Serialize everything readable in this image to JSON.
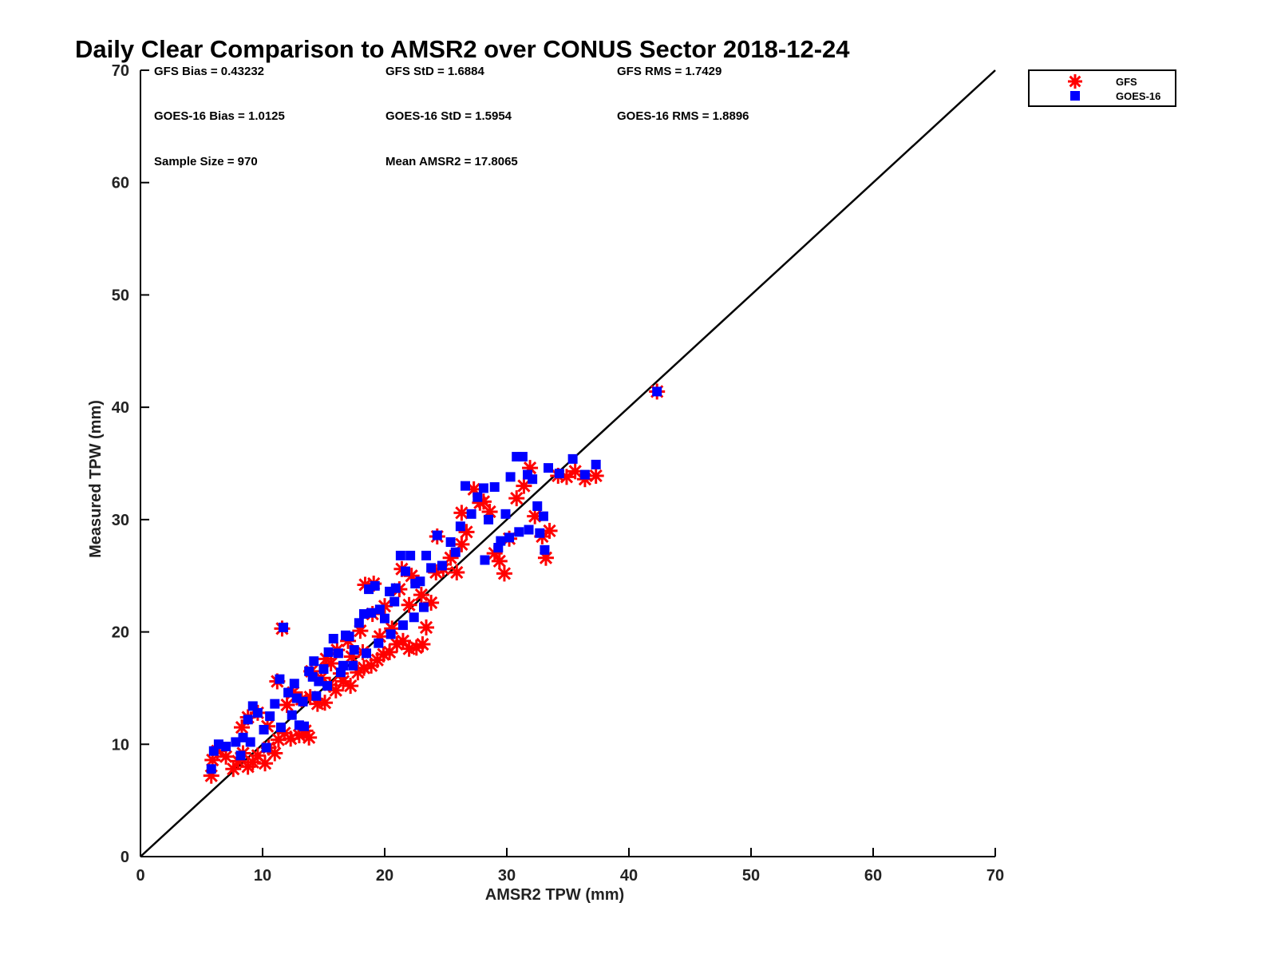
{
  "colors": {
    "gfs": "#ff0000",
    "goes": "#0000ff",
    "axis": "#000000"
  },
  "stats": {
    "gfs_bias": "GFS Bias = 0.43232",
    "gfs_std": "GFS StD = 1.6884",
    "gfs_rms": "GFS RMS = 1.7429",
    "goes_bias": "GOES-16 Bias = 1.0125",
    "goes_std": "GOES-16 StD = 1.5954",
    "goes_rms": "GOES-16 RMS = 1.8896",
    "sample_size": "Sample Size = 970",
    "mean_amsr2": "Mean AMSR2 = 17.8065"
  },
  "legend": {
    "gfs": "GFS",
    "goes": "GOES-16"
  },
  "chart_data": {
    "type": "scatter",
    "title": "Daily Clear Comparison to AMSR2 over CONUS Sector 2018-12-24",
    "xlabel": "AMSR2 TPW (mm)",
    "ylabel": "Measured TPW (mm)",
    "xlim": [
      0,
      70
    ],
    "ylim": [
      0,
      70
    ],
    "xticks": [
      "0",
      "10",
      "20",
      "30",
      "40",
      "50",
      "60",
      "70"
    ],
    "yticks": [
      "0",
      "10",
      "20",
      "30",
      "40",
      "50",
      "60",
      "70"
    ],
    "grid": false,
    "legend_position": "outside-top-right",
    "reference_line": {
      "from": [
        0,
        0
      ],
      "to": [
        70,
        70
      ]
    },
    "series": [
      {
        "name": "GFS",
        "marker": "asterisk",
        "points": [
          [
            5.8,
            7.2
          ],
          [
            5.9,
            8.6
          ],
          [
            6.3,
            9.4
          ],
          [
            7.0,
            8.9
          ],
          [
            7.6,
            7.8
          ],
          [
            8.0,
            8.5
          ],
          [
            8.4,
            9.2
          ],
          [
            8.8,
            8.0
          ],
          [
            9.2,
            8.4
          ],
          [
            9.6,
            9.0
          ],
          [
            10.2,
            8.3
          ],
          [
            10.5,
            9.7
          ],
          [
            11.0,
            9.2
          ],
          [
            11.3,
            10.4
          ],
          [
            11.8,
            11.0
          ],
          [
            12.3,
            10.5
          ],
          [
            13.0,
            10.8
          ],
          [
            13.5,
            11.2
          ],
          [
            13.8,
            10.6
          ],
          [
            8.3,
            11.5
          ],
          [
            8.8,
            12.4
          ],
          [
            9.6,
            12.8
          ],
          [
            10.4,
            11.6
          ],
          [
            11.2,
            15.6
          ],
          [
            11.6,
            20.3
          ],
          [
            12.0,
            13.5
          ],
          [
            12.5,
            14.6
          ],
          [
            13.2,
            14.0
          ],
          [
            13.9,
            14.2
          ],
          [
            14.5,
            13.6
          ],
          [
            15.1,
            13.7
          ],
          [
            15.5,
            15.3
          ],
          [
            16.0,
            14.8
          ],
          [
            16.6,
            15.6
          ],
          [
            17.2,
            15.2
          ],
          [
            17.8,
            16.4
          ],
          [
            18.3,
            16.8
          ],
          [
            18.9,
            17.0
          ],
          [
            19.4,
            17.5
          ],
          [
            19.9,
            18.0
          ],
          [
            20.4,
            18.2
          ],
          [
            21.0,
            18.9
          ],
          [
            21.5,
            19.2
          ],
          [
            22.0,
            18.5
          ],
          [
            22.6,
            18.6
          ],
          [
            23.1,
            18.9
          ],
          [
            23.4,
            20.4
          ],
          [
            23.8,
            22.6
          ],
          [
            24.2,
            25.3
          ],
          [
            24.8,
            25.6
          ],
          [
            25.4,
            26.6
          ],
          [
            25.9,
            25.3
          ],
          [
            26.3,
            27.8
          ],
          [
            26.7,
            28.9
          ],
          [
            27.3,
            32.7
          ],
          [
            28.1,
            31.6
          ],
          [
            28.6,
            30.7
          ],
          [
            29.0,
            27.0
          ],
          [
            29.4,
            26.3
          ],
          [
            29.8,
            25.2
          ],
          [
            30.2,
            28.3
          ],
          [
            30.8,
            31.9
          ],
          [
            31.4,
            33.0
          ],
          [
            31.9,
            34.6
          ],
          [
            32.3,
            30.3
          ],
          [
            32.9,
            28.5
          ],
          [
            33.2,
            26.6
          ],
          [
            33.5,
            29.0
          ],
          [
            34.2,
            33.9
          ],
          [
            34.9,
            33.8
          ],
          [
            35.6,
            34.3
          ],
          [
            36.4,
            33.6
          ],
          [
            37.3,
            33.9
          ],
          [
            42.3,
            41.4
          ],
          [
            15.2,
            17.6
          ],
          [
            16.1,
            18.4
          ],
          [
            17.0,
            19.2
          ],
          [
            18.0,
            20.1
          ],
          [
            19.0,
            21.6
          ],
          [
            20.0,
            22.3
          ],
          [
            21.2,
            23.8
          ],
          [
            22.0,
            22.4
          ],
          [
            18.4,
            24.2
          ],
          [
            19.1,
            24.3
          ],
          [
            21.4,
            25.6
          ],
          [
            22.2,
            25.0
          ],
          [
            23.0,
            23.3
          ],
          [
            24.3,
            28.5
          ],
          [
            26.3,
            30.6
          ],
          [
            27.8,
            31.5
          ],
          [
            14.0,
            16.5
          ],
          [
            14.8,
            15.9
          ],
          [
            15.6,
            17.2
          ],
          [
            16.4,
            16.3
          ],
          [
            17.3,
            17.8
          ],
          [
            18.2,
            18.2
          ],
          [
            19.6,
            19.6
          ],
          [
            20.6,
            20.3
          ]
        ]
      },
      {
        "name": "GOES-16",
        "marker": "square",
        "points": [
          [
            5.8,
            7.8
          ],
          [
            6.0,
            9.4
          ],
          [
            6.4,
            10.0
          ],
          [
            7.0,
            9.8
          ],
          [
            7.8,
            10.2
          ],
          [
            8.4,
            10.6
          ],
          [
            8.8,
            12.2
          ],
          [
            9.2,
            13.4
          ],
          [
            9.6,
            12.8
          ],
          [
            10.1,
            11.3
          ],
          [
            10.6,
            12.5
          ],
          [
            11.0,
            13.6
          ],
          [
            11.4,
            15.8
          ],
          [
            11.7,
            20.4
          ],
          [
            12.1,
            14.6
          ],
          [
            12.6,
            15.4
          ],
          [
            13.0,
            11.7
          ],
          [
            13.4,
            11.6
          ],
          [
            13.8,
            16.5
          ],
          [
            14.2,
            17.4
          ],
          [
            14.6,
            15.6
          ],
          [
            15.0,
            16.7
          ],
          [
            15.4,
            18.2
          ],
          [
            15.8,
            19.4
          ],
          [
            16.2,
            18.1
          ],
          [
            16.6,
            17.0
          ],
          [
            17.1,
            19.6
          ],
          [
            17.5,
            18.4
          ],
          [
            17.9,
            20.8
          ],
          [
            18.3,
            21.6
          ],
          [
            18.7,
            23.8
          ],
          [
            19.2,
            24.1
          ],
          [
            19.6,
            22.0
          ],
          [
            20.0,
            21.2
          ],
          [
            20.4,
            23.6
          ],
          [
            20.8,
            22.7
          ],
          [
            21.3,
            26.8
          ],
          [
            21.7,
            25.4
          ],
          [
            22.1,
            26.8
          ],
          [
            22.5,
            24.3
          ],
          [
            22.9,
            24.5
          ],
          [
            23.4,
            26.8
          ],
          [
            23.8,
            25.7
          ],
          [
            24.3,
            28.6
          ],
          [
            24.7,
            25.9
          ],
          [
            25.4,
            28.0
          ],
          [
            25.8,
            27.1
          ],
          [
            26.2,
            29.4
          ],
          [
            26.6,
            33.0
          ],
          [
            27.1,
            30.5
          ],
          [
            27.6,
            32.0
          ],
          [
            28.1,
            32.8
          ],
          [
            28.5,
            30.0
          ],
          [
            29.0,
            32.9
          ],
          [
            29.5,
            28.1
          ],
          [
            29.9,
            30.5
          ],
          [
            30.3,
            33.8
          ],
          [
            30.8,
            35.6
          ],
          [
            31.3,
            35.6
          ],
          [
            31.7,
            34.0
          ],
          [
            32.1,
            33.6
          ],
          [
            32.5,
            31.2
          ],
          [
            33.0,
            30.3
          ],
          [
            33.4,
            34.6
          ],
          [
            34.3,
            34.1
          ],
          [
            35.4,
            35.4
          ],
          [
            36.4,
            34.0
          ],
          [
            37.3,
            34.9
          ],
          [
            42.3,
            41.4
          ],
          [
            8.2,
            9.0
          ],
          [
            9.0,
            10.2
          ],
          [
            10.3,
            9.7
          ],
          [
            11.5,
            11.5
          ],
          [
            12.4,
            12.6
          ],
          [
            13.3,
            13.8
          ],
          [
            14.4,
            14.3
          ],
          [
            15.3,
            15.2
          ],
          [
            16.4,
            16.4
          ],
          [
            17.4,
            17.0
          ],
          [
            18.5,
            18.1
          ],
          [
            19.5,
            19.0
          ],
          [
            20.5,
            19.8
          ],
          [
            21.5,
            20.6
          ],
          [
            22.4,
            21.3
          ],
          [
            23.2,
            22.2
          ],
          [
            30.2,
            28.4
          ],
          [
            31.0,
            28.9
          ],
          [
            31.8,
            29.1
          ],
          [
            32.7,
            28.8
          ],
          [
            33.1,
            27.3
          ],
          [
            28.2,
            26.4
          ],
          [
            29.3,
            27.5
          ],
          [
            14.1,
            16.0
          ],
          [
            16.8,
            19.7
          ],
          [
            18.9,
            21.7
          ],
          [
            20.9,
            23.9
          ],
          [
            12.8,
            14.1
          ]
        ]
      }
    ]
  }
}
